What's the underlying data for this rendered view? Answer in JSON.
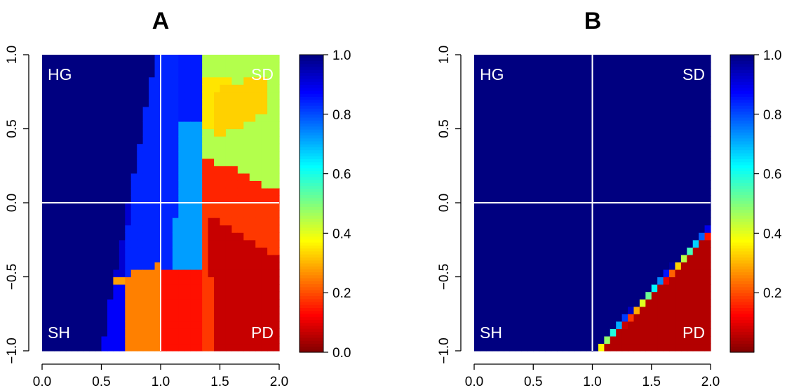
{
  "chart_data": [
    {
      "type": "heatmap",
      "title": "A",
      "xlabel": "",
      "ylabel": "",
      "xlim": [
        0.0,
        2.0
      ],
      "ylim": [
        -1.0,
        1.0
      ],
      "x_ticks": [
        "0.0",
        "0.5",
        "1.0",
        "1.5",
        "2.0"
      ],
      "y_ticks": [
        "-1.0",
        "-0.5",
        "0.0",
        "0.5",
        "1.0"
      ],
      "colorbar": {
        "range": [
          0.0,
          1.0
        ],
        "ticks": [
          "0.0",
          "0.2",
          "0.4",
          "0.6",
          "0.8",
          "1.0"
        ],
        "colormap": "jet"
      },
      "reference_lines": {
        "x": 1.0,
        "y": 0.0
      },
      "regions": [
        {
          "label": "HG",
          "position": "top-left"
        },
        {
          "label": "SD",
          "position": "top-right"
        },
        {
          "label": "SH",
          "position": "bottom-left"
        },
        {
          "label": "PD",
          "position": "bottom-right"
        }
      ],
      "z_description": "Mostly 1.0 on the left; a light-blue band (0.7–0.9) near x≈0.8–1.3; values 0.35–0.5 in the upper right; 0.05–0.2 in the lower right"
    },
    {
      "type": "heatmap",
      "title": "B",
      "xlabel": "",
      "ylabel": "",
      "xlim": [
        0.0,
        2.0
      ],
      "ylim": [
        -1.0,
        1.0
      ],
      "x_ticks": [
        "0.0",
        "0.5",
        "1.0",
        "1.5",
        "2.0"
      ],
      "y_ticks": [
        "-1.0",
        "-0.5",
        "0.0",
        "0.5",
        "1.0"
      ],
      "colorbar": {
        "range": [
          0.0,
          1.0
        ],
        "ticks": [
          "0.2",
          "0.4",
          "0.6",
          "0.8",
          "1.0"
        ],
        "colormap": "jet"
      },
      "reference_lines": {
        "x": 1.0,
        "y": 0.0
      },
      "regions": [
        {
          "label": "HG",
          "position": "top-left"
        },
        {
          "label": "SD",
          "position": "top-right"
        },
        {
          "label": "SH",
          "position": "bottom-left"
        },
        {
          "label": "PD",
          "position": "bottom-right"
        }
      ],
      "z_description": "Value 1.0 everywhere except the wedge below the line from (1.0,-1.0) to (2.0,-0.15), where it falls to about 0.0"
    }
  ]
}
